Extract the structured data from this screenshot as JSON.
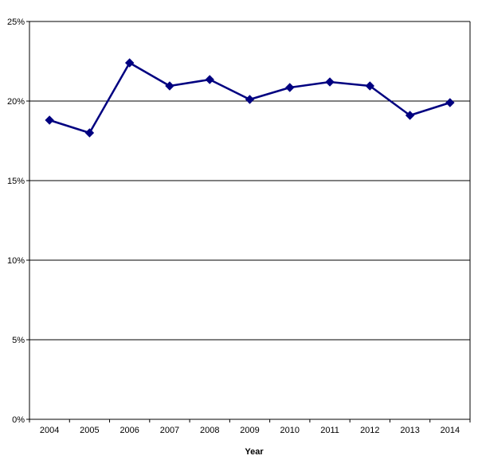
{
  "chart_data": {
    "type": "line",
    "title": "",
    "xlabel": "Year",
    "ylabel": "",
    "categories": [
      "2004",
      "2005",
      "2006",
      "2007",
      "2008",
      "2009",
      "2010",
      "2011",
      "2012",
      "2013",
      "2014"
    ],
    "series": [
      {
        "values": [
          18.8,
          18.0,
          22.4,
          20.95,
          21.35,
          20.1,
          20.85,
          21.2,
          20.95,
          19.1,
          19.9
        ],
        "color": "#000080",
        "marker": "diamond"
      }
    ],
    "ylim": [
      0,
      25
    ],
    "yticks": [
      0,
      5,
      10,
      15,
      20,
      25
    ],
    "ytick_labels": [
      "0%",
      "5%",
      "10%",
      "15%",
      "20%",
      "25%"
    ],
    "grid": "horizontal",
    "legend": "none"
  }
}
